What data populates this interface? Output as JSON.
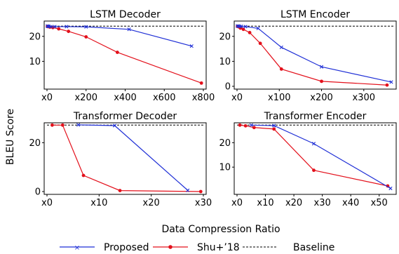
{
  "figure": {
    "ylabel": "BLEU Score",
    "xlabel": "Data Compression Ratio"
  },
  "legend": {
    "placement": "bottom",
    "entries": [
      {
        "label": "Proposed",
        "color": "#1f2fd6",
        "marker": "x"
      },
      {
        "label": "Shu+’18",
        "color": "#e3101b",
        "marker": "dot"
      },
      {
        "label": "Baseline",
        "color": "#000000",
        "marker": "dashed"
      }
    ]
  },
  "chart_data": [
    {
      "type": "line",
      "title": "LSTM Decoder",
      "xlim": [
        0,
        800
      ],
      "ylim": [
        0,
        25
      ],
      "xticks": [
        {
          "v": 0,
          "label": "x0"
        },
        {
          "v": 200,
          "label": "x200"
        },
        {
          "v": 400,
          "label": "x400"
        },
        {
          "v": 600,
          "label": "x600"
        },
        {
          "v": 800,
          "label": "x800"
        }
      ],
      "yticks": [
        {
          "v": 10,
          "label": "10"
        },
        {
          "v": 20,
          "label": "20"
        }
      ],
      "baseline": 24.1,
      "series": [
        {
          "name": "Proposed",
          "points": [
            [
              2,
              24.1
            ],
            [
              5,
              24.0
            ],
            [
              10,
              24.0
            ],
            [
              20,
              23.9
            ],
            [
              40,
              23.9
            ],
            [
              100,
              23.9
            ],
            [
              200,
              23.8
            ],
            [
              420,
              22.8
            ],
            [
              740,
              16.1
            ]
          ]
        },
        {
          "name": "Shu+’18",
          "points": [
            [
              2,
              24.0
            ],
            [
              5,
              23.9
            ],
            [
              15,
              23.7
            ],
            [
              30,
              23.5
            ],
            [
              60,
              23.0
            ],
            [
              110,
              22.0
            ],
            [
              200,
              19.8
            ],
            [
              360,
              13.6
            ],
            [
              790,
              1.3
            ]
          ]
        }
      ]
    },
    {
      "type": "line",
      "title": "LSTM Encoder",
      "xlim": [
        0,
        370
      ],
      "ylim": [
        0,
        25
      ],
      "xticks": [
        {
          "v": 0,
          "label": "x0"
        },
        {
          "v": 100,
          "label": "x100"
        },
        {
          "v": 200,
          "label": "x200"
        },
        {
          "v": 300,
          "label": "x300"
        }
      ],
      "yticks": [
        {
          "v": 0,
          "label": "0"
        },
        {
          "v": 10,
          "label": "10"
        },
        {
          "v": 20,
          "label": "20"
        }
      ],
      "baseline": 24.1,
      "series": [
        {
          "name": "Proposed",
          "points": [
            [
              1,
              24.1
            ],
            [
              3,
              24.1
            ],
            [
              6,
              24.0
            ],
            [
              10,
              24.0
            ],
            [
              20,
              23.9
            ],
            [
              50,
              23.2
            ],
            [
              105,
              15.6
            ],
            [
              200,
              7.8
            ],
            [
              365,
              1.7
            ]
          ]
        },
        {
          "name": "Shu+’18",
          "points": [
            [
              1,
              24.0
            ],
            [
              4,
              23.8
            ],
            [
              8,
              23.3
            ],
            [
              15,
              22.8
            ],
            [
              30,
              21.5
            ],
            [
              55,
              17.2
            ],
            [
              105,
              6.9
            ],
            [
              200,
              2.0
            ],
            [
              355,
              0.5
            ]
          ]
        }
      ]
    },
    {
      "type": "line",
      "title": "Transformer Decoder",
      "xlim": [
        0,
        30
      ],
      "ylim": [
        0,
        27
      ],
      "xticks": [
        {
          "v": 0,
          "label": "x0"
        },
        {
          "v": 10,
          "label": "x10"
        },
        {
          "v": 20,
          "label": "x20"
        },
        {
          "v": 30,
          "label": "x30"
        }
      ],
      "yticks": [
        {
          "v": 0,
          "label": "0"
        },
        {
          "v": 20,
          "label": "20"
        }
      ],
      "baseline": 27.2,
      "series": [
        {
          "name": "Proposed",
          "points": [
            [
              6,
              27.3
            ],
            [
              13,
              27.0
            ],
            [
              27,
              0.5
            ]
          ]
        },
        {
          "name": "Shu+’18",
          "points": [
            [
              1,
              27.2
            ],
            [
              3,
              27.2
            ],
            [
              7,
              6.6
            ],
            [
              14,
              0.4
            ],
            [
              29.5,
              0.0
            ]
          ]
        }
      ]
    },
    {
      "type": "line",
      "title": "Transformer Encoder",
      "xlim": [
        0,
        55
      ],
      "ylim": [
        0,
        27
      ],
      "xticks": [
        {
          "v": 0,
          "label": "x0"
        },
        {
          "v": 10,
          "label": "x10"
        },
        {
          "v": 20,
          "label": "x20"
        },
        {
          "v": 30,
          "label": "x30"
        },
        {
          "v": 40,
          "label": "x40"
        },
        {
          "v": 50,
          "label": "x50"
        }
      ],
      "yticks": [
        {
          "v": 10,
          "label": "10"
        },
        {
          "v": 20,
          "label": "20"
        }
      ],
      "baseline": 27.2,
      "series": [
        {
          "name": "Proposed",
          "points": [
            [
              5,
              27.2
            ],
            [
              13,
              27.0
            ],
            [
              27,
              19.6
            ],
            [
              54,
              1.3
            ]
          ]
        },
        {
          "name": "Shu+’18",
          "points": [
            [
              1,
              27.2
            ],
            [
              3,
              26.9
            ],
            [
              6,
              26.2
            ],
            [
              13,
              25.6
            ],
            [
              27,
              8.7
            ],
            [
              53,
              2.3
            ]
          ]
        }
      ]
    }
  ]
}
